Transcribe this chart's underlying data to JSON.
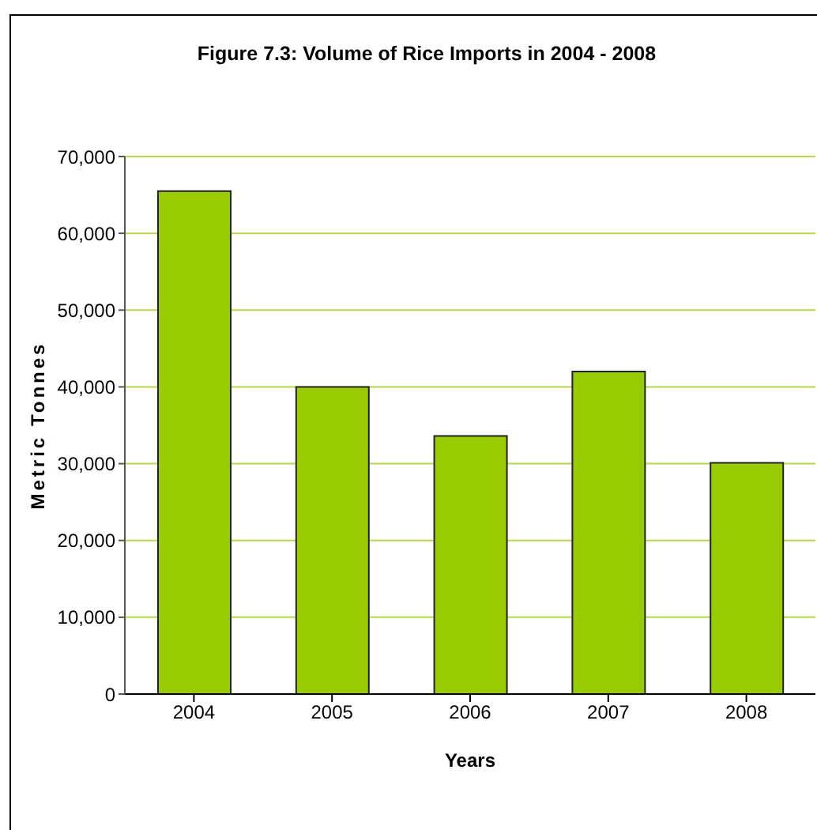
{
  "chart_data": {
    "type": "bar",
    "title": "Figure 7.3: Volume of Rice Imports in 2004 - 2008",
    "xlabel": "Years",
    "ylabel": "Metric Tonnes",
    "categories": [
      "2004",
      "2005",
      "2006",
      "2007",
      "2008"
    ],
    "values": [
      65500,
      40000,
      33600,
      42000,
      30100
    ],
    "color": "#99cc00",
    "ylim": [
      0,
      70000
    ],
    "yticks": [
      0,
      {
        "value": 10000,
        "label": "10,000"
      },
      {
        "value": 20000,
        "label": "20,000"
      },
      {
        "value": 30000,
        "label": "30,000"
      },
      {
        "value": 40000,
        "label": "40,000"
      },
      {
        "value": 50000,
        "label": "50,000"
      },
      {
        "value": 60000,
        "label": "60,000"
      },
      {
        "value": 70000,
        "label": "70,000"
      }
    ],
    "grid": "y"
  }
}
